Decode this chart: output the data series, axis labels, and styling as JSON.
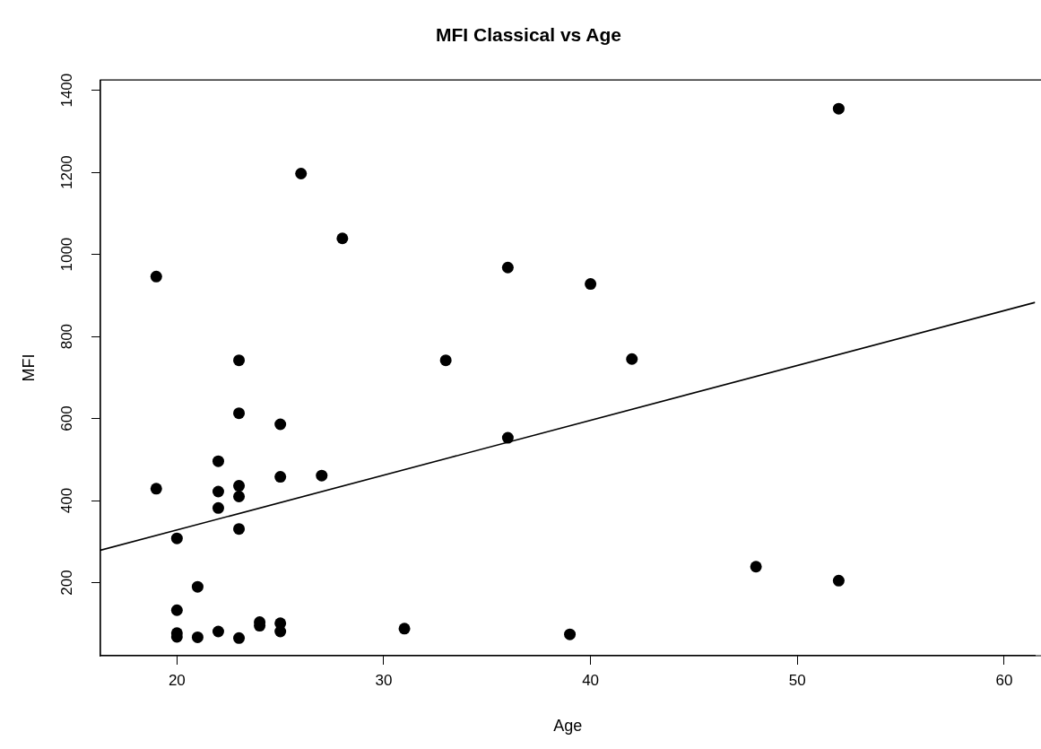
{
  "chart_data": {
    "type": "scatter",
    "title": "MFI Classical vs Age",
    "xlabel": "Age",
    "ylabel": "MFI",
    "xlim": [
      16.3,
      61.5
    ],
    "xticks": [
      20,
      30,
      40,
      50,
      60
    ],
    "ylim": [
      22,
      1425
    ],
    "yticks": [
      200,
      400,
      600,
      800,
      1000,
      1200,
      1400
    ],
    "grid": false,
    "legend": false,
    "marker": "circle",
    "series": [
      {
        "color": "#000000",
        "x": [
          19,
          26,
          28,
          36,
          23,
          33,
          52,
          40,
          42,
          39,
          48,
          52,
          23,
          25,
          36,
          22,
          25,
          27,
          19,
          22,
          23,
          23,
          22,
          23,
          20,
          21,
          20,
          20,
          20,
          21,
          22,
          23,
          24,
          24,
          25,
          25,
          31
        ],
        "values": [
          946,
          1197,
          1039,
          968,
          742,
          742,
          1355,
          928,
          745,
          74,
          239,
          205,
          613,
          586,
          553,
          496,
          458,
          461,
          429,
          422,
          436,
          410,
          382,
          331,
          308,
          190,
          133,
          77,
          68,
          67,
          81,
          65,
          104,
          95,
          101,
          81,
          88
        ]
      },
      {
        "type": "line",
        "color": "#000000",
        "marker": "none",
        "x": [
          16.3,
          61.5
        ],
        "values": [
          279,
          883
        ]
      }
    ]
  }
}
